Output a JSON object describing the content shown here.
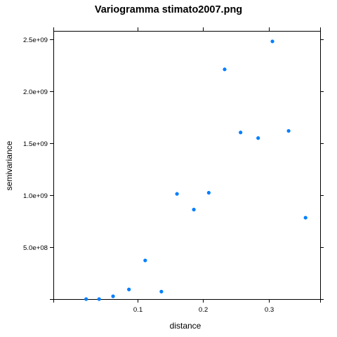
{
  "chart_data": {
    "type": "scatter",
    "title": "Variogramma stimato2007.png",
    "xlabel": "distance",
    "ylabel": "semivariance",
    "xlim": [
      -0.0285,
      0.3785
    ],
    "ylim": [
      0,
      2580000000.0
    ],
    "x_ticks": [
      {
        "value": 0.1,
        "label": "0.1"
      },
      {
        "value": 0.2,
        "label": "0.2"
      },
      {
        "value": 0.3,
        "label": "0.3"
      }
    ],
    "y_ticks": [
      {
        "value": 500000000.0,
        "label": "5.0e+08"
      },
      {
        "value": 1000000000.0,
        "label": "1.0e+09"
      },
      {
        "value": 1500000000.0,
        "label": "1.5e+09"
      },
      {
        "value": 2000000000.0,
        "label": "2.0e+09"
      },
      {
        "value": 2500000000.0,
        "label": "2.5e+09"
      }
    ],
    "grid": false,
    "point_color": "#0080ff",
    "series": [
      {
        "points": [
          {
            "x": 0.0215,
            "y": 0
          },
          {
            "x": 0.0413,
            "y": 0
          },
          {
            "x": 0.0626,
            "y": 27000000.0
          },
          {
            "x": 0.0868,
            "y": 93000000.0
          },
          {
            "x": 0.1116,
            "y": 372000000.0
          },
          {
            "x": 0.1363,
            "y": 72000000.0
          },
          {
            "x": 0.1601,
            "y": 1012000000.0
          },
          {
            "x": 0.1858,
            "y": 861000000.0
          },
          {
            "x": 0.2086,
            "y": 1023000000.0
          },
          {
            "x": 0.2328,
            "y": 2210000000.0
          },
          {
            "x": 0.2571,
            "y": 1603000000.0
          },
          {
            "x": 0.2839,
            "y": 1549000000.0
          },
          {
            "x": 0.3057,
            "y": 2479000000.0
          },
          {
            "x": 0.3304,
            "y": 1618000000.0
          },
          {
            "x": 0.3562,
            "y": 783000000.0
          }
        ]
      }
    ]
  }
}
